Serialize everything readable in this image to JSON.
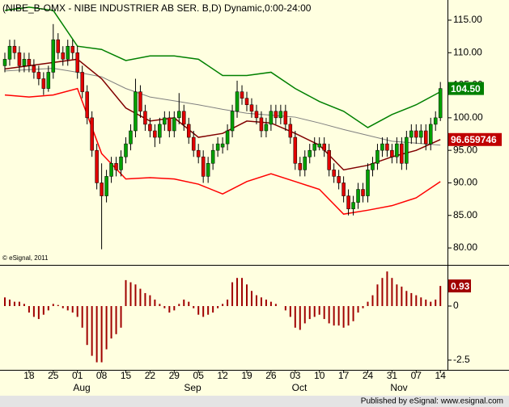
{
  "chart_data": [
    {
      "type": "candlestick",
      "title": "(NIBE_B-OMX - NIBE INDUSTRIER AB SER. B,D) Dynamic,0:00-24:00",
      "copyright": "© eSignal, 2011",
      "categories": [
        null,
        null,
        null,
        null,
        null,
        "18",
        null,
        null,
        null,
        null,
        "25",
        null,
        null,
        null,
        null,
        "01",
        null,
        null,
        null,
        null,
        "08",
        null,
        null,
        null,
        null,
        "15",
        null,
        null,
        null,
        null,
        "22",
        null,
        null,
        null,
        null,
        "29",
        null,
        null,
        null,
        null,
        "05",
        null,
        null,
        null,
        null,
        "12",
        null,
        null,
        null,
        null,
        "19",
        null,
        null,
        null,
        null,
        "26",
        null,
        null,
        null,
        null,
        "03",
        null,
        null,
        null,
        null,
        "10",
        null,
        null,
        null,
        null,
        "17",
        null,
        null,
        null,
        null,
        "24",
        null,
        null,
        null,
        null,
        "31",
        null,
        null,
        null,
        null,
        "07",
        null,
        null,
        null,
        null,
        "14"
      ],
      "months": [
        "Aug",
        "Sep",
        "Oct",
        "Nov"
      ],
      "open": [
        108,
        109,
        111,
        110,
        108,
        109,
        108,
        107,
        106,
        104.5,
        107,
        112,
        110,
        109,
        111,
        110,
        107,
        104,
        100,
        95,
        90,
        88,
        91,
        93,
        92,
        94,
        96,
        98,
        104,
        101,
        99,
        98,
        97,
        99,
        100,
        98,
        100,
        101,
        99,
        97,
        95,
        94,
        91,
        93,
        95,
        95.5,
        96,
        98,
        101,
        104,
        103,
        102,
        101,
        100,
        98,
        99,
        101,
        100,
        101,
        99,
        97,
        93,
        92,
        94,
        95,
        95.5,
        96,
        95,
        92,
        91,
        90,
        88,
        86,
        87,
        89,
        88,
        92,
        93,
        95,
        96,
        95,
        94,
        96,
        93,
        97,
        98,
        97,
        98,
        96,
        99,
        100
      ],
      "high": [
        110,
        112,
        112,
        111,
        110,
        110,
        109,
        108,
        107,
        108,
        114.4,
        113,
        111,
        112,
        112,
        111,
        108,
        105,
        101,
        96,
        93,
        92,
        94,
        94,
        95,
        97,
        99,
        106,
        105,
        102,
        100,
        99,
        100,
        101,
        101,
        101,
        103.8,
        102,
        100,
        98,
        96,
        95,
        94,
        96,
        97,
        97,
        99,
        102,
        105.7,
        105,
        104,
        103,
        102,
        101,
        100,
        102,
        102,
        102,
        102,
        100,
        98,
        94,
        95,
        96,
        97,
        97,
        97,
        96,
        93,
        92,
        91,
        89,
        88,
        90,
        90,
        93,
        94,
        96,
        97,
        97,
        96,
        97,
        97,
        98,
        99,
        99,
        99,
        99,
        100,
        101,
        105.5
      ],
      "low": [
        107,
        108,
        109,
        107,
        107,
        107,
        106,
        105,
        103.5,
        104,
        106,
        109,
        108,
        108,
        109,
        106,
        103,
        99,
        94,
        89,
        79.8,
        87,
        90,
        91,
        91,
        93,
        95,
        97,
        100,
        98,
        97,
        95.5,
        96,
        98,
        97,
        97,
        99,
        98,
        96,
        94,
        93,
        90,
        90,
        92,
        94,
        94.5,
        95,
        97,
        100,
        102,
        101,
        100,
        99,
        97,
        97,
        98,
        99,
        99,
        98,
        96,
        92,
        91,
        91,
        93,
        94,
        95,
        94,
        91,
        90,
        89,
        87,
        85,
        85,
        86,
        87,
        87,
        91,
        92,
        94,
        94,
        93,
        93,
        92,
        92,
        96,
        96,
        96,
        95,
        95,
        98,
        99.5
      ],
      "close": [
        109,
        111,
        110,
        108,
        109,
        108,
        107,
        106,
        104.5,
        107,
        112,
        110,
        109,
        111,
        110,
        107,
        104,
        100,
        95,
        90,
        88,
        91,
        93,
        92,
        94,
        96,
        98,
        104,
        101,
        99,
        98,
        97,
        99,
        100,
        98,
        100,
        101,
        99,
        97,
        95,
        94,
        91,
        93,
        95,
        96,
        96,
        98,
        101,
        104,
        103,
        102,
        101,
        100,
        98,
        99,
        101,
        100,
        101,
        99,
        97,
        93,
        92,
        94,
        95,
        96,
        96,
        95,
        92,
        91,
        90,
        88,
        86,
        87,
        89,
        88,
        92,
        93,
        95,
        96,
        95,
        94,
        96,
        93,
        97,
        98,
        97,
        98,
        96,
        99,
        100,
        104.5
      ],
      "last_close_label": "104.50",
      "up_color": "#00a000",
      "down_color": "#e00000",
      "lines": [
        {
          "color": "#808080",
          "x": [
            0,
            5,
            10,
            15,
            20,
            25,
            30,
            35,
            40,
            45,
            50,
            55,
            60,
            65,
            70,
            75,
            80,
            85,
            90
          ],
          "values": [
            107.2,
            107.4,
            107.6,
            107,
            106.3,
            104.5,
            103.2,
            102.6,
            102,
            101.3,
            100.7,
            100.4,
            100.1,
            99.2,
            98.2,
            97.3,
            96.4,
            96.1,
            95.8
          ]
        },
        {
          "color": "#800000",
          "x": [
            0,
            5,
            10,
            15,
            20,
            25,
            30,
            35,
            40,
            45,
            50,
            55,
            60,
            65,
            70,
            75,
            80,
            85,
            90
          ],
          "values": [
            107.5,
            108,
            108.5,
            109,
            106,
            101.5,
            99.5,
            100,
            97,
            97.6,
            99.5,
            99.2,
            97.6,
            95.8,
            92,
            92.7,
            94,
            95,
            96.659746
          ]
        },
        {
          "color": "#008000",
          "x": [
            0,
            5,
            10,
            15,
            20,
            25,
            30,
            35,
            40,
            45,
            50,
            55,
            60,
            65,
            70,
            75,
            80,
            85,
            90
          ],
          "values": [
            116.5,
            117,
            116.5,
            111,
            110.5,
            108.8,
            109.5,
            109.5,
            109,
            106.5,
            106.5,
            107,
            104.5,
            102.5,
            101,
            98.5,
            100.5,
            102,
            104
          ]
        },
        {
          "color": "#ff0000",
          "x": [
            0,
            5,
            10,
            15,
            20,
            25,
            30,
            35,
            40,
            45,
            50,
            55,
            60,
            65,
            70,
            75,
            80,
            85,
            90
          ],
          "values": [
            103.5,
            103.2,
            103.5,
            104.5,
            94.5,
            90.6,
            90.8,
            90.6,
            89.8,
            88.3,
            90.2,
            91.4,
            90.2,
            89,
            85.2,
            85.8,
            86.5,
            87.7,
            90.2
          ]
        }
      ],
      "ylim": [
        77.4,
        118.1
      ],
      "yticks": [
        {
          "value": 115,
          "label": "115.00"
        },
        {
          "value": 110,
          "label": "110.00"
        },
        {
          "value": 105,
          "label": "105.00"
        },
        {
          "value": 100,
          "label": "100.00"
        },
        {
          "value": 95,
          "label": "95.00"
        },
        {
          "value": 90,
          "label": "90.00"
        },
        {
          "value": 85,
          "label": "85.00"
        },
        {
          "value": 80,
          "label": "80.00"
        }
      ]
    },
    {
      "type": "bar",
      "color": "#a00000",
      "values": [
        0.4,
        0.3,
        0.2,
        0.2,
        0.1,
        -0.3,
        -0.5,
        -0.6,
        -0.4,
        -0.2,
        0.1,
        0.05,
        -0.1,
        -0.2,
        -0.3,
        -0.5,
        -1.0,
        -1.8,
        -2.3,
        -2.6,
        -2.6,
        -2.0,
        -1.5,
        -1.3,
        -1.0,
        1.2,
        1.1,
        1.0,
        0.8,
        0.6,
        0.5,
        0.3,
        0.1,
        -0.1,
        -0.3,
        -0.2,
        0.1,
        0.3,
        0.2,
        -0.1,
        -0.4,
        -0.5,
        -0.4,
        -0.3,
        -0.1,
        0.1,
        0.3,
        1.1,
        1.3,
        1.3,
        1.0,
        0.7,
        0.5,
        0.4,
        0.3,
        0.2,
        0.1,
        0.0,
        -0.2,
        -0.5,
        -1.0,
        -1.1,
        -0.8,
        -0.6,
        -0.5,
        -0.4,
        -0.6,
        -0.8,
        -0.9,
        -0.9,
        -1.0,
        -0.9,
        -0.7,
        -0.3,
        -0.1,
        0.2,
        0.5,
        1.0,
        1.3,
        1.6,
        1.3,
        1.0,
        0.9,
        0.7,
        0.6,
        0.5,
        0.4,
        0.3,
        0.2,
        0.3,
        0.93
      ],
      "ylim": [
        -2.95,
        1.83
      ],
      "yticks": [
        0,
        -2.5
      ]
    }
  ],
  "footer": "Published by eSignal: www.esignal.com"
}
